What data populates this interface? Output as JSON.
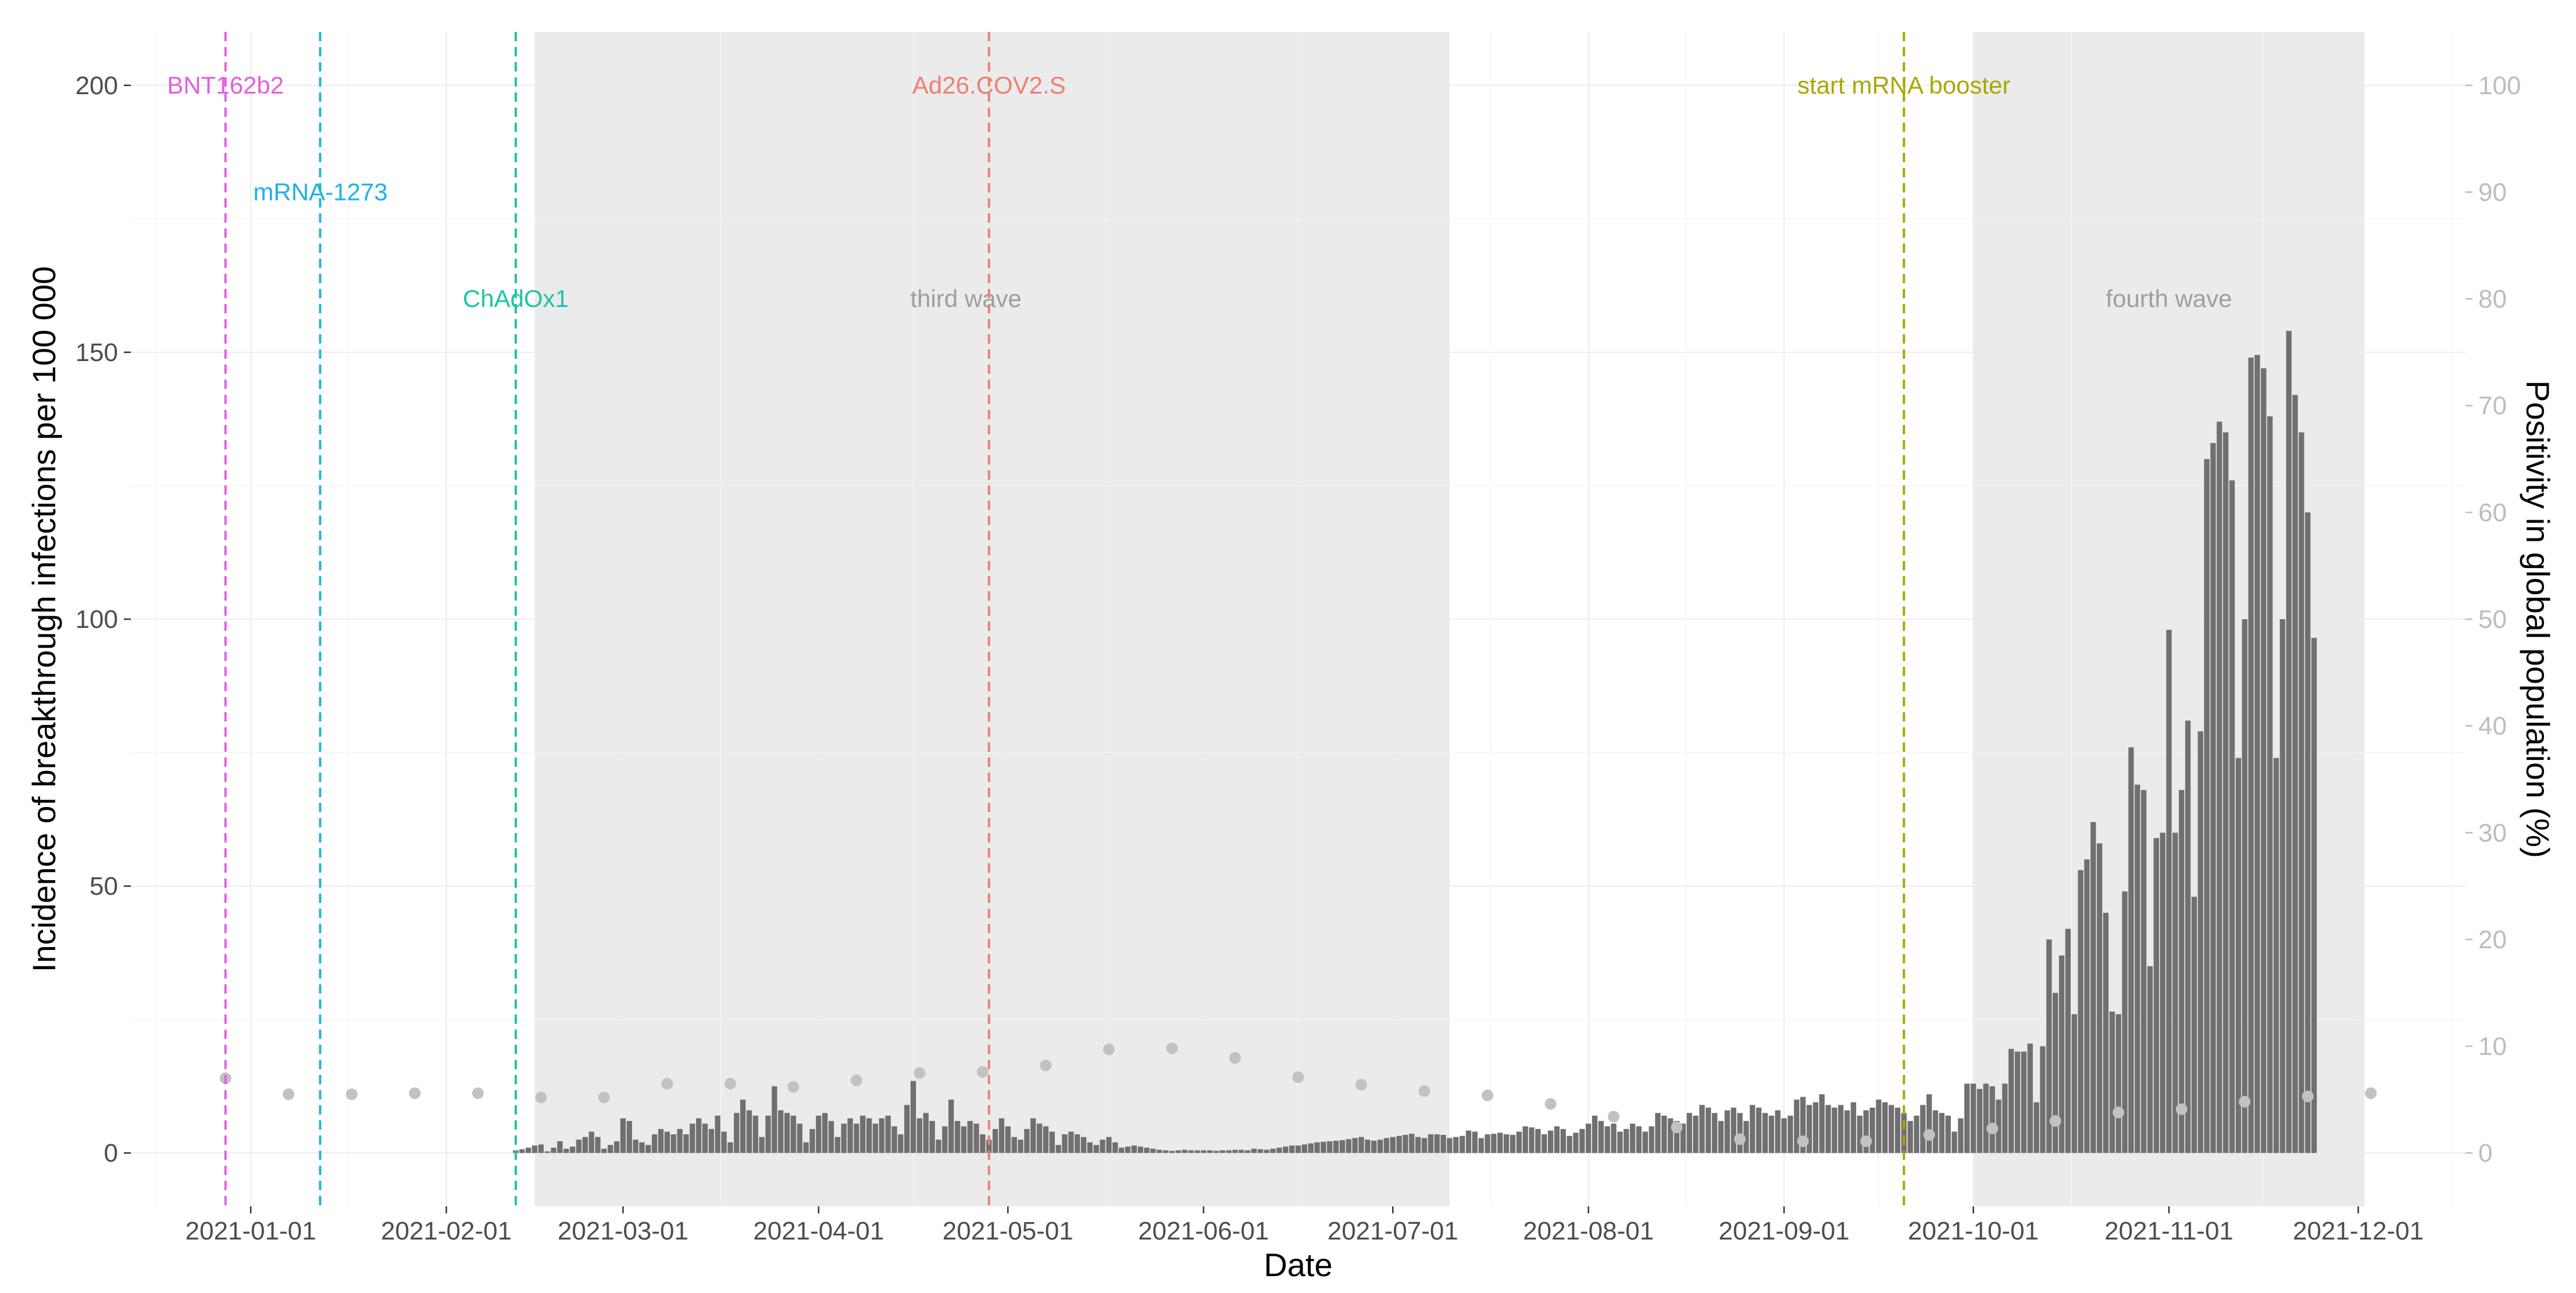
{
  "chart_data": {
    "type": "bar",
    "title": "",
    "xlabel": "Date",
    "ylabel": "Incidence of breakthrough infections per 100 000",
    "y2label": "Positivity in global population (%)",
    "ylim": [
      -10,
      210
    ],
    "y2lim": [
      -5,
      105
    ],
    "xlim": [
      "2020-12-13",
      "2021-12-18"
    ],
    "grid": true,
    "x_ticks": [
      "2021-01-01",
      "2021-02-01",
      "2021-03-01",
      "2021-04-01",
      "2021-05-01",
      "2021-06-01",
      "2021-07-01",
      "2021-08-01",
      "2021-09-01",
      "2021-10-01",
      "2021-11-01",
      "2021-12-01"
    ],
    "y_ticks": [
      0,
      50,
      100,
      150,
      200
    ],
    "y2_ticks": [
      0,
      10,
      20,
      30,
      40,
      50,
      60,
      70,
      80,
      90,
      100
    ],
    "colors": {
      "bars": "#707070",
      "points": "#c2c2c2",
      "shade": "#ebebeb",
      "grid": "#ececec",
      "right_axis": "#bdbdbd"
    },
    "shaded_periods": [
      {
        "label": "third wave",
        "start": "2021-02-15",
        "end": "2021-07-10"
      },
      {
        "label": "fourth wave",
        "start": "2021-10-01",
        "end": "2021-12-02"
      }
    ],
    "vaccine_lines": [
      {
        "label": "BNT162b2",
        "date": "2020-12-28",
        "color": "#e45fe0",
        "label_y": 200
      },
      {
        "label": "mRNA-1273",
        "date": "2021-01-12",
        "color": "#1fb1e8",
        "label_y": 180
      },
      {
        "label": "ChAdOx1",
        "date": "2021-02-12",
        "color": "#1ec4a4",
        "label_y": 160
      },
      {
        "label": "Ad26.COV2.S",
        "date": "2021-04-28",
        "color": "#ef7f72",
        "label_y": 200
      },
      {
        "label": "start mRNA booster",
        "date": "2021-09-20",
        "color": "#a8a800",
        "label_y": 200
      }
    ],
    "incidence_series": {
      "name": "Incidence of breakthrough infections per 100 000",
      "start_date": "2021-02-12",
      "values": [
        0.5,
        0.7,
        1,
        1.4,
        1.6,
        0.3,
        1,
        2.2,
        0.8,
        1.2,
        2.5,
        3,
        4,
        3,
        0.8,
        1.5,
        2.2,
        6.5,
        6,
        2.5,
        2,
        1.5,
        3.5,
        4.5,
        4,
        3.5,
        4.5,
        3.5,
        5.5,
        6.5,
        5.5,
        4.5,
        7,
        4,
        2,
        7.5,
        10,
        8,
        7,
        3,
        7,
        12.5,
        8,
        7.5,
        7,
        5.5,
        2,
        4.5,
        7,
        7.5,
        6,
        3,
        5.5,
        6.5,
        5.5,
        7,
        6.5,
        5.5,
        6.5,
        7,
        5,
        3.5,
        9,
        13.5,
        6.5,
        7.5,
        6,
        2.5,
        5,
        10,
        6,
        5,
        6,
        5.5,
        3.5,
        2.5,
        4.5,
        6.5,
        5,
        3,
        2.5,
        4.5,
        6.5,
        5.5,
        5,
        4,
        1.5,
        3.5,
        4,
        3.5,
        3,
        2,
        1.5,
        2.5,
        3,
        2,
        1,
        1.2,
        1.4,
        1.2,
        1,
        0.8,
        0.6,
        0.5,
        0.4,
        0.5,
        0.6,
        0.5,
        0.5,
        0.5,
        0.5,
        0.4,
        0.5,
        0.5,
        0.6,
        0.6,
        0.5,
        0.8,
        0.7,
        0.6,
        0.8,
        1,
        1.2,
        1.4,
        1.4,
        1.6,
        1.8,
        2,
        2.1,
        2.2,
        2.3,
        2.4,
        2.6,
        2.8,
        3,
        2.5,
        2.3,
        2.5,
        2.8,
        3,
        3.2,
        3.4,
        3.6,
        3,
        2.8,
        3.5,
        3.5,
        3.4,
        2.8,
        3,
        3.2,
        4.2,
        4,
        2.8,
        3.5,
        3.6,
        3.8,
        3.5,
        3.4,
        4,
        5,
        4.8,
        4.5,
        3.5,
        4.2,
        5,
        4.5,
        3.2,
        3.8,
        4.5,
        5.5,
        7,
        6,
        5,
        5.5,
        4,
        4.5,
        5.5,
        5,
        4,
        5,
        7.5,
        7,
        6.5,
        6,
        5.5,
        7.5,
        7,
        9,
        8.5,
        7.5,
        6,
        8,
        8.5,
        7.5,
        6,
        9,
        8.5,
        7.5,
        7,
        8,
        6.5,
        7,
        10,
        10.5,
        9,
        9.5,
        11,
        9,
        8.5,
        9,
        8,
        9.5,
        7,
        8,
        8.5,
        10,
        9.5,
        9,
        8.5,
        7.5,
        6,
        7,
        9,
        11,
        8,
        7.5,
        7,
        4,
        6.5,
        13,
        13,
        12,
        13,
        12.5,
        10,
        13,
        19.5,
        19,
        19,
        20.5,
        9.5,
        20,
        40,
        30,
        37,
        42,
        26,
        53,
        55,
        62,
        58,
        45,
        26.5,
        26,
        49,
        76,
        69,
        68,
        35,
        59,
        60,
        98,
        60,
        68,
        81,
        48,
        79,
        130,
        133,
        137,
        135,
        126,
        74,
        100,
        149,
        149.5,
        147,
        138,
        74,
        100,
        154,
        142,
        135,
        120,
        96.5
      ]
    },
    "positivity_series": {
      "name": "Positivity in global population (%)",
      "points": [
        {
          "x": "2020-12-28",
          "y": 7
        },
        {
          "x": "2021-01-07",
          "y": 5.5
        },
        {
          "x": "2021-01-17",
          "y": 5.5
        },
        {
          "x": "2021-01-27",
          "y": 5.6
        },
        {
          "x": "2021-02-06",
          "y": 5.6
        },
        {
          "x": "2021-02-16",
          "y": 5.2
        },
        {
          "x": "2021-02-26",
          "y": 5.2
        },
        {
          "x": "2021-03-08",
          "y": 6.5
        },
        {
          "x": "2021-03-18",
          "y": 6.5
        },
        {
          "x": "2021-03-28",
          "y": 6.2
        },
        {
          "x": "2021-04-07",
          "y": 6.8
        },
        {
          "x": "2021-04-17",
          "y": 7.5
        },
        {
          "x": "2021-04-27",
          "y": 7.6
        },
        {
          "x": "2021-05-07",
          "y": 8.2
        },
        {
          "x": "2021-05-17",
          "y": 9.7
        },
        {
          "x": "2021-05-27",
          "y": 9.8
        },
        {
          "x": "2021-06-06",
          "y": 8.9
        },
        {
          "x": "2021-06-16",
          "y": 7.1
        },
        {
          "x": "2021-06-26",
          "y": 6.4
        },
        {
          "x": "2021-07-06",
          "y": 5.8
        },
        {
          "x": "2021-07-16",
          "y": 5.4
        },
        {
          "x": "2021-07-26",
          "y": 4.6
        },
        {
          "x": "2021-08-05",
          "y": 3.4
        },
        {
          "x": "2021-08-15",
          "y": 2.4
        },
        {
          "x": "2021-08-25",
          "y": 1.3
        },
        {
          "x": "2021-09-04",
          "y": 1.1
        },
        {
          "x": "2021-09-14",
          "y": 1.1
        },
        {
          "x": "2021-09-24",
          "y": 1.7
        },
        {
          "x": "2021-10-04",
          "y": 2.3
        },
        {
          "x": "2021-10-14",
          "y": 3.0
        },
        {
          "x": "2021-10-24",
          "y": 3.8
        },
        {
          "x": "2021-11-03",
          "y": 4.1
        },
        {
          "x": "2021-11-13",
          "y": 4.8
        },
        {
          "x": "2021-11-23",
          "y": 5.3
        },
        {
          "x": "2021-12-03",
          "y": 5.6
        }
      ]
    }
  }
}
